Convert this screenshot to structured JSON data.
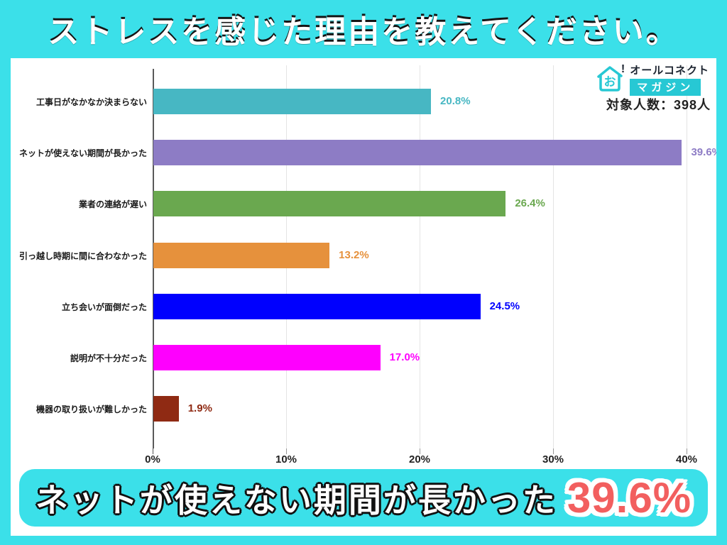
{
  "title": "ストレスを感じた理由を教えてください。",
  "brand": {
    "icon_text": "お",
    "bang": "!",
    "top": "オールコネクト",
    "bottom": "マガジン"
  },
  "sample_size": "対象人数：398人",
  "chart_data": {
    "type": "bar",
    "orientation": "horizontal",
    "categories": [
      "工事日がなかなか決まらない",
      "ネットが使えない期間が長かった",
      "業者の連絡が遅い",
      "引っ越し時期に間に合わなかった",
      "立ち会いが面倒だった",
      "説明が不十分だった",
      "機器の取り扱いが難しかった"
    ],
    "values": [
      20.8,
      39.6,
      26.4,
      13.2,
      24.5,
      17.0,
      1.9
    ],
    "value_labels": [
      "20.8%",
      "39.6%",
      "26.4%",
      "13.2%",
      "24.5%",
      "17.0%",
      "1.9%"
    ],
    "bar_colors": [
      "#47b7c3",
      "#8d7cc5",
      "#6aa84f",
      "#e6913c",
      "#0000fe",
      "#fe00fe",
      "#8f2a13"
    ],
    "xlim": [
      0,
      40
    ],
    "x_ticks": [
      "0%",
      "10%",
      "20%",
      "30%",
      "40%"
    ],
    "grid": true,
    "legend": "none",
    "title": ""
  },
  "banner": {
    "text": "ネットが使えない期間が長かった",
    "value": "39.6%"
  },
  "colors": {
    "background_teal": "#3be0e9",
    "logo_teal": "#27c8d4",
    "banner_value_red": "#f25f5f",
    "text_dark": "#1c2430",
    "axis_gray": "#5a5a5a",
    "gridline_gray": "#e4e4e4"
  }
}
